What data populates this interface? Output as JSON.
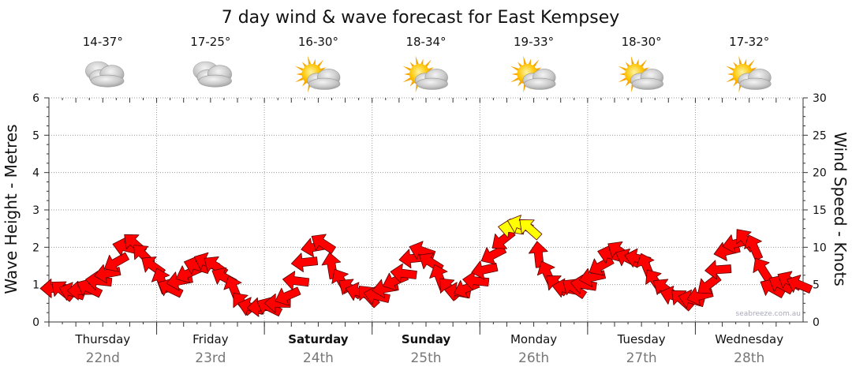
{
  "chart_data": {
    "type": "line",
    "title": "7 day wind & wave forecast for East Kempsey",
    "ylabel_left": "Wave Height - Metres",
    "ylabel_right": "Wind Speed - Knots",
    "ylim_left": [
      0,
      6
    ],
    "ylim_right": [
      0,
      30
    ],
    "left_ticks": [
      "0",
      "1",
      "2",
      "3",
      "4",
      "5",
      "6"
    ],
    "right_ticks": [
      "0",
      "5",
      "10",
      "15",
      "20",
      "25",
      "30"
    ],
    "grid": true,
    "days": [
      {
        "name": "Thursday",
        "date": "22nd",
        "temp": "14-37°",
        "icon": "cloudy-icon",
        "bold": false
      },
      {
        "name": "Friday",
        "date": "23rd",
        "temp": "17-25°",
        "icon": "cloudy-icon",
        "bold": false
      },
      {
        "name": "Saturday",
        "date": "24th",
        "temp": "16-30°",
        "icon": "partly-cloudy-icon",
        "bold": true
      },
      {
        "name": "Sunday",
        "date": "25th",
        "temp": "18-34°",
        "icon": "partly-cloudy-icon",
        "bold": true
      },
      {
        "name": "Monday",
        "date": "26th",
        "temp": "19-33°",
        "icon": "partly-cloudy-icon",
        "bold": false
      },
      {
        "name": "Tuesday",
        "date": "27th",
        "temp": "18-30°",
        "icon": "partly-cloudy-icon",
        "bold": false
      },
      {
        "name": "Wednesday",
        "date": "28th",
        "temp": "17-32°",
        "icon": "partly-cloudy-icon",
        "bold": false
      }
    ],
    "series": [
      {
        "name": "Wind Speed - Knots",
        "unit": "knots",
        "x_day": [
          0.0,
          0.08,
          0.17,
          0.25,
          0.33,
          0.42,
          0.5,
          0.58,
          0.67,
          0.75,
          0.83,
          0.92,
          1.0,
          1.08,
          1.17,
          1.25,
          1.33,
          1.42,
          1.5,
          1.58,
          1.67,
          1.75,
          1.83,
          1.92,
          2.0,
          2.08,
          2.17,
          2.25,
          2.33,
          2.42,
          2.5,
          2.58,
          2.67,
          2.75,
          2.83,
          2.92,
          3.0,
          3.08,
          3.17,
          3.25,
          3.33,
          3.42,
          3.5,
          3.58,
          3.67,
          3.75,
          3.83,
          3.92,
          4.0,
          4.08,
          4.17,
          4.25,
          4.33,
          4.42,
          4.5,
          4.58,
          4.67,
          4.75,
          4.83,
          4.92,
          5.0,
          5.08,
          5.17,
          5.25,
          5.33,
          5.42,
          5.5,
          5.58,
          5.67,
          5.75,
          5.83,
          5.92,
          6.0,
          6.08,
          6.17,
          6.25,
          6.33,
          6.42,
          6.5,
          6.58,
          6.67,
          6.75,
          6.83,
          6.92
        ],
        "values": [
          4.5,
          4.2,
          4.0,
          4.2,
          4.5,
          5.5,
          6.5,
          8.0,
          10.0,
          10.5,
          9.0,
          7.5,
          5.5,
          4.5,
          5.5,
          6.5,
          7.5,
          8.0,
          7.5,
          6.0,
          4.5,
          2.5,
          2.0,
          2.0,
          2.0,
          2.5,
          3.5,
          5.5,
          8.0,
          10.0,
          10.5,
          7.5,
          5.5,
          4.5,
          4.0,
          3.5,
          3.5,
          4.5,
          5.5,
          6.5,
          8.5,
          9.5,
          8.0,
          6.0,
          4.5,
          4.0,
          4.5,
          5.5,
          7.0,
          9.0,
          11.0,
          12.5,
          13.0,
          12.5,
          9.0,
          6.5,
          5.0,
          4.5,
          4.5,
          5.0,
          6.0,
          7.5,
          9.0,
          9.5,
          8.5,
          8.5,
          7.5,
          5.5,
          4.5,
          3.5,
          3.0,
          3.0,
          3.5,
          5.0,
          7.0,
          9.5,
          10.5,
          11.0,
          10.0,
          7.0,
          4.5,
          5.0,
          5.5,
          5.0
        ],
        "color": "#ff0000",
        "strong_color": "#ffff00"
      }
    ]
  },
  "watermark": "seabreeze.com.au"
}
